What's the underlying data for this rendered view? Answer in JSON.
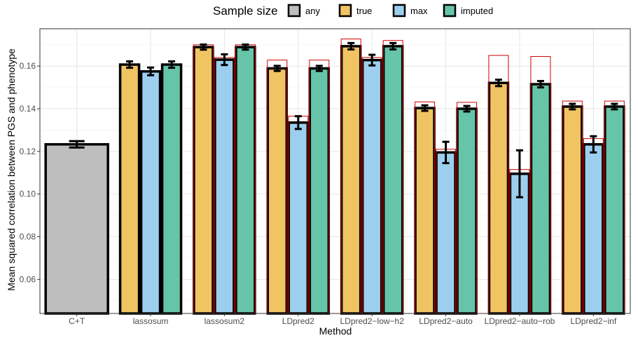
{
  "chart_data": {
    "type": "bar",
    "xlabel": "Method",
    "ylabel": "Mean squared correlation between PGS and phenotype",
    "ylim": [
      0.044,
      0.1775
    ],
    "yticks": [
      "0.06",
      "0.08",
      "0.10",
      "0.12",
      "0.14",
      "0.16"
    ],
    "yticks_values": [
      0.06,
      0.08,
      0.1,
      0.12,
      0.14,
      0.16
    ],
    "categories": [
      "C+T",
      "lassosum",
      "lassosum2",
      "LDpred2",
      "LDpred2−low−h2",
      "LDpred2−auto",
      "LDpred2−auto−rob",
      "LDpred2−inf"
    ],
    "legend": {
      "title": "Sample size",
      "position": "top",
      "items": [
        {
          "name": "any",
          "color": "#bebebe"
        },
        {
          "name": "true",
          "color": "#f0c462"
        },
        {
          "name": "max",
          "color": "#9ccfee"
        },
        {
          "name": "imputed",
          "color": "#66c4a8"
        }
      ]
    },
    "grid": true,
    "reference_outline_color": "#cc0000",
    "series": [
      {
        "name": "any",
        "values": [
          0.1233,
          null,
          null,
          null,
          null,
          null,
          null,
          null
        ],
        "err": [
          0.0015,
          null,
          null,
          null,
          null,
          null,
          null,
          null
        ],
        "reference": [
          null,
          null,
          null,
          null,
          null,
          null,
          null,
          null
        ]
      },
      {
        "name": "true",
        "values": [
          null,
          0.1607,
          0.1689,
          0.1589,
          0.1693,
          0.1403,
          0.1521,
          0.141
        ],
        "err": [
          null,
          0.0015,
          0.0012,
          0.0012,
          0.0015,
          0.0013,
          0.0015,
          0.0013
        ],
        "reference": [
          null,
          null,
          0.17,
          0.1628,
          0.1727,
          0.1432,
          0.165,
          0.1436
        ]
      },
      {
        "name": "max",
        "values": [
          null,
          0.1575,
          0.163,
          0.1335,
          0.1628,
          0.1195,
          0.1095,
          0.1233
        ],
        "err": [
          null,
          0.0018,
          0.0025,
          0.003,
          0.0025,
          0.005,
          0.011,
          0.0038
        ],
        "reference": [
          null,
          null,
          0.164,
          0.1365,
          0.164,
          0.121,
          0.1115,
          0.126
        ]
      },
      {
        "name": "imputed",
        "values": [
          null,
          0.1607,
          0.1689,
          0.1589,
          0.1693,
          0.14,
          0.1515,
          0.141
        ],
        "err": [
          null,
          0.0015,
          0.0012,
          0.0012,
          0.0015,
          0.0013,
          0.0015,
          0.0013
        ],
        "reference": [
          null,
          null,
          0.17,
          0.1628,
          0.172,
          0.143,
          0.1645,
          0.1436
        ]
      }
    ]
  }
}
